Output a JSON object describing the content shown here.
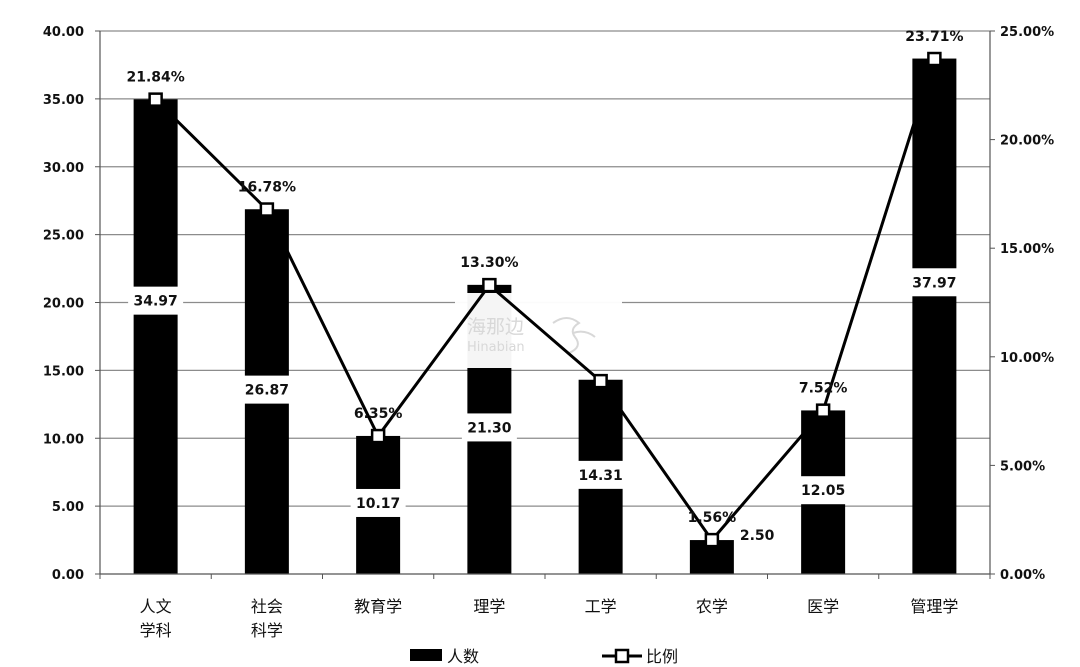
{
  "chart_data": {
    "type": "bar",
    "categories": [
      [
        "人文",
        "学科"
      ],
      [
        "社会",
        "科学"
      ],
      [
        "教育学"
      ],
      [
        "理学"
      ],
      [
        "工学"
      ],
      [
        "农学"
      ],
      [
        "医学"
      ],
      [
        "管理学"
      ]
    ],
    "series": [
      {
        "name": "人数",
        "type": "bar",
        "axis": "left",
        "values": [
          34.97,
          26.87,
          10.17,
          21.3,
          14.31,
          2.5,
          12.05,
          37.97
        ],
        "labels": [
          "34.97",
          "26.87",
          "10.17",
          "21.30",
          "14.31",
          "2.50",
          "12.05",
          "37.97"
        ],
        "color": "#000000"
      },
      {
        "name": "比例",
        "type": "line",
        "axis": "right",
        "values": [
          21.84,
          16.78,
          6.35,
          13.3,
          8.88,
          1.56,
          7.52,
          23.71
        ],
        "labels": [
          "21.84%",
          "16.78%",
          "6.35%",
          "13.30%",
          "",
          "1.56%",
          "7.52%",
          "23.71%"
        ],
        "color": "#000000",
        "marker": "hollow-square"
      }
    ],
    "y_left": {
      "ylim": [
        0,
        40
      ],
      "ticks": [
        "0.00",
        "5.00",
        "10.00",
        "15.00",
        "20.00",
        "25.00",
        "30.00",
        "35.00",
        "40.00"
      ]
    },
    "y_right": {
      "ylim": [
        0,
        25
      ],
      "ticks": [
        "0.00%",
        "5.00%",
        "10.00%",
        "15.00%",
        "20.00%",
        "25.00%"
      ]
    },
    "grid": true,
    "legend_position": "bottom-center",
    "title": "",
    "xlabel": "",
    "ylabel": ""
  },
  "watermark": {
    "text_cn": "海那边",
    "text_en": "Hinabian"
  }
}
